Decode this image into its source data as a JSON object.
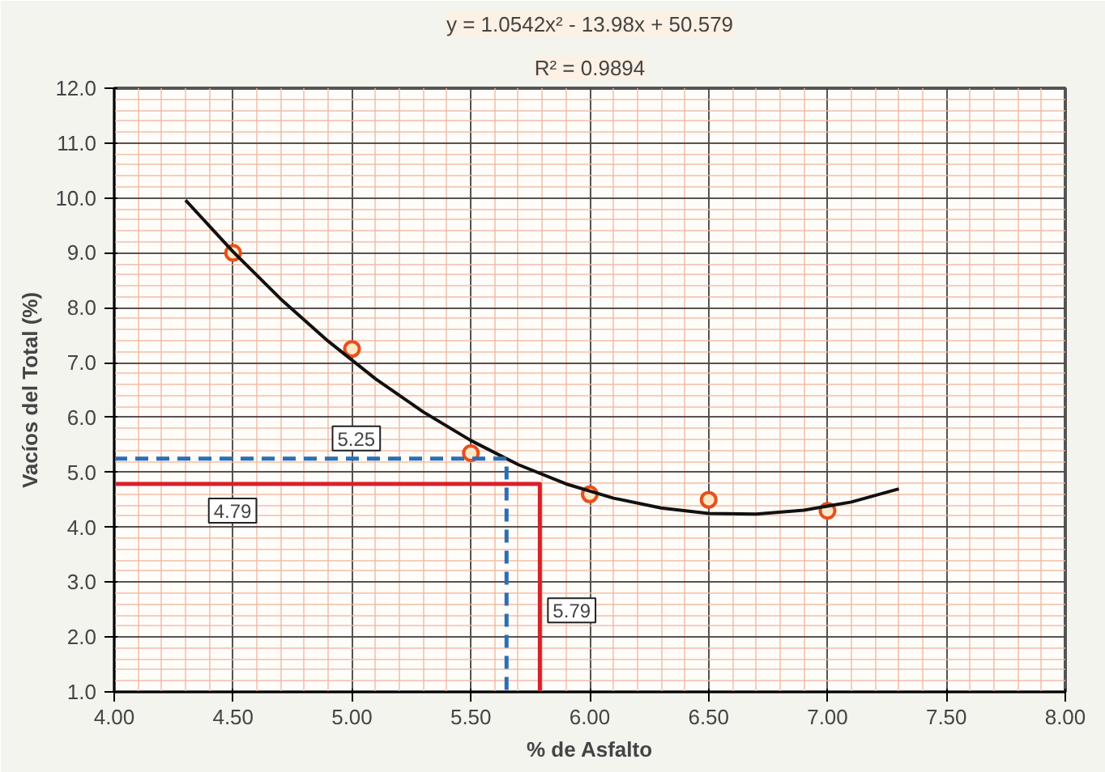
{
  "chart_data": {
    "type": "scatter",
    "title": "y = 1.0542x² - 13.98x + 50.579",
    "subtitle": "R² = 0.9894",
    "xlabel": "% de Asfalto",
    "ylabel": "Vacíos del Total (%)",
    "xlim": [
      4,
      8
    ],
    "ylim": [
      1,
      12
    ],
    "xticks": [
      {
        "value": 4,
        "label": "4.00"
      },
      {
        "value": 4.5,
        "label": "4.50"
      },
      {
        "value": 5,
        "label": "5.00"
      },
      {
        "value": 5.5,
        "label": "5.50"
      },
      {
        "value": 6,
        "label": "6.00"
      },
      {
        "value": 6.5,
        "label": "6.50"
      },
      {
        "value": 7,
        "label": "7.00"
      },
      {
        "value": 7.5,
        "label": "7.50"
      },
      {
        "value": 8,
        "label": "8.00"
      }
    ],
    "yticks": [
      {
        "value": 1,
        "label": "1.0"
      },
      {
        "value": 2,
        "label": "2.0"
      },
      {
        "value": 3,
        "label": "3.0"
      },
      {
        "value": 4,
        "label": "4.0"
      },
      {
        "value": 5,
        "label": "5.0"
      },
      {
        "value": 6,
        "label": "6.0"
      },
      {
        "value": 7,
        "label": "7.0"
      },
      {
        "value": 8,
        "label": "8.0"
      },
      {
        "value": 9,
        "label": "9.0"
      },
      {
        "value": 10,
        "label": "10.0"
      },
      {
        "value": 11,
        "label": "11.0"
      },
      {
        "value": 12,
        "label": "12.0"
      }
    ],
    "grid": true,
    "marker": "circle",
    "series": [
      {
        "color": "#e8501a",
        "x": [
          4.5,
          5.0,
          5.5,
          6.0,
          6.5,
          7.0
        ],
        "values": [
          9.0,
          7.25,
          5.35,
          4.6,
          4.5,
          4.3
        ]
      },
      {
        "type": "line",
        "color": "#111111",
        "marker": "none",
        "line_style": "solid",
        "x": [
          4.3,
          4.5,
          4.7,
          4.9,
          5.1,
          5.3,
          5.5,
          5.7,
          5.9,
          6.1,
          6.3,
          6.5,
          6.7,
          6.9,
          7.1,
          7.3
        ],
        "values": [
          9.96,
          9.02,
          8.16,
          7.39,
          6.7,
          6.1,
          5.58,
          5.14,
          4.79,
          4.53,
          4.35,
          4.25,
          4.24,
          4.31,
          4.46,
          4.7
        ]
      },
      {
        "type": "line",
        "color": "#2a6fb5",
        "marker": "none",
        "line_style": "dashed",
        "x": [
          4.0,
          5.65,
          5.65
        ],
        "values": [
          5.25,
          5.25,
          1.0
        ]
      },
      {
        "type": "line",
        "color": "#d9202a",
        "marker": "none",
        "line_style": "solid",
        "x": [
          4.0,
          5.79,
          5.79
        ],
        "values": [
          4.79,
          4.79,
          1.0
        ]
      }
    ],
    "annotations": [
      {
        "text": "5.25",
        "x": 5.0,
        "y": 5.25
      },
      {
        "text": "4.79",
        "x": 4.5,
        "y": 4.79
      },
      {
        "text": "5.79",
        "x": 5.79,
        "y": 2.5
      }
    ]
  }
}
